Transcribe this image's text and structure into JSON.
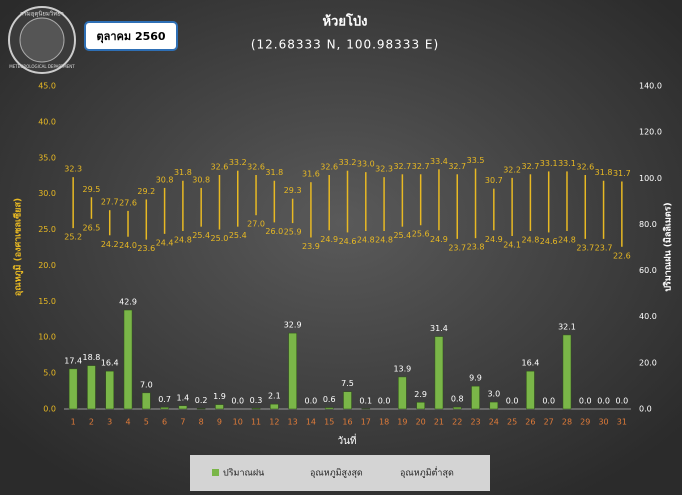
{
  "logo": {
    "top": "กรมอุตุนิยมวิทยา",
    "bottom": "METEOROLOGICAL DEPARTMENT"
  },
  "date_box": "ตุลาคม 2560",
  "chart_data": {
    "type": "bar",
    "title": "ห้วยโป่ง",
    "subtitle": "(12.68333 N, 100.98333 E)",
    "y_label": "อุณหภูมิ (องศาเซลเซียส)",
    "y2_label": "ปริมาณฝน (มิลลิเมตร)",
    "x_label": "วันที่",
    "categories": [
      "1",
      "2",
      "3",
      "4",
      "5",
      "6",
      "7",
      "8",
      "9",
      "10",
      "11",
      "12",
      "13",
      "14",
      "15",
      "16",
      "17",
      "18",
      "19",
      "20",
      "21",
      "22",
      "23",
      "24",
      "25",
      "26",
      "27",
      "28",
      "29",
      "30",
      "31"
    ],
    "ylim": [
      0,
      45
    ],
    "yticks": [
      {
        "value": 0,
        "label": "0.0"
      },
      {
        "value": 5,
        "label": "5.0"
      },
      {
        "value": 10,
        "label": "10.0"
      },
      {
        "value": 15,
        "label": "15.0"
      },
      {
        "value": 20,
        "label": "20.0"
      },
      {
        "value": 25,
        "label": "25.0"
      },
      {
        "value": 30,
        "label": "30.0"
      },
      {
        "value": 35,
        "label": "35.0"
      },
      {
        "value": 40,
        "label": "40.0"
      },
      {
        "value": 45,
        "label": "45.0"
      }
    ],
    "y2lim": [
      0,
      140
    ],
    "y2ticks": [
      {
        "value": 0,
        "label": "0.0"
      },
      {
        "value": 20,
        "label": "20.0"
      },
      {
        "value": 40,
        "label": "40.0"
      },
      {
        "value": 60,
        "label": "60.0"
      },
      {
        "value": 80,
        "label": "80.0"
      },
      {
        "value": 100,
        "label": "100.0"
      },
      {
        "value": 120,
        "label": "120.0"
      },
      {
        "value": 140,
        "label": "140.0"
      }
    ],
    "series": [
      {
        "name": "ปริมาณฝน",
        "color": "#7ab648",
        "axis": "y2",
        "values": [
          17.4,
          18.8,
          16.4,
          42.9,
          7.0,
          0.7,
          1.4,
          0.2,
          1.9,
          0.0,
          0.3,
          2.1,
          32.9,
          0.0,
          0.6,
          7.5,
          0.1,
          0.0,
          13.9,
          2.9,
          31.4,
          0.8,
          9.9,
          3.0,
          0.0,
          16.4,
          0.0,
          32.1,
          0.0,
          0.0,
          0.0
        ],
        "value_labels": [
          "17.4",
          "18.8",
          "16.4",
          "42.9",
          "7.0",
          "0.7",
          "1.4",
          "0.2",
          "1.9",
          "0.0",
          "0.3",
          "2.1",
          "32.9",
          "0.0",
          "0.6",
          "7.5",
          "0.1",
          "0.0",
          "13.9",
          "2.9",
          "31.4",
          "0.8",
          "9.9",
          "3.0",
          "0.0",
          "16.4",
          "0.0",
          "32.1",
          "0.0",
          "0.0",
          "0.0"
        ]
      },
      {
        "name": "อุณหภูมิสูงสุด",
        "color": "#e8b923",
        "values": [
          32.3,
          29.5,
          27.7,
          27.6,
          29.2,
          30.8,
          31.8,
          30.8,
          32.6,
          33.2,
          32.6,
          31.8,
          29.3,
          31.6,
          32.6,
          33.2,
          33.0,
          32.3,
          32.7,
          32.7,
          33.4,
          32.7,
          33.5,
          30.7,
          32.2,
          32.7,
          33.1,
          33.1,
          32.6,
          31.8,
          31.7
        ],
        "value_labels": [
          "32.3",
          "29.5",
          "27.7",
          "27.6",
          "29.2",
          "30.8",
          "31.8",
          "30.8",
          "32.6",
          "33.2",
          "32.6",
          "31.8",
          "29.3",
          "31.6",
          "32.6",
          "33.2",
          "33.0",
          "32.3",
          "32.7",
          "32.7",
          "33.4",
          "32.7",
          "33.5",
          "30.7",
          "32.2",
          "32.7",
          "33.1",
          "33.1",
          "32.6",
          "31.8",
          "31.7"
        ]
      },
      {
        "name": "อุณหภูมิต่ำสุด",
        "color": "#e8b923",
        "values": [
          25.2,
          26.5,
          24.2,
          24.0,
          23.6,
          24.4,
          24.8,
          25.4,
          25.0,
          25.4,
          27.0,
          26.0,
          25.9,
          23.9,
          24.9,
          24.6,
          24.8,
          24.8,
          25.4,
          25.6,
          24.9,
          23.7,
          23.8,
          24.9,
          24.1,
          24.8,
          24.6,
          24.8,
          23.7,
          23.7,
          22.6
        ],
        "value_labels": [
          "25.2",
          "26.5",
          "24.2",
          "24.0",
          "23.6",
          "24.4",
          "24.8",
          "25.4",
          "25.0",
          "25.4",
          "27.0",
          "26.0",
          "25.9",
          "23.9",
          "24.9",
          "24.6",
          "24.8",
          "24.8",
          "25.4",
          "25.6",
          "24.9",
          "23.7",
          "23.8",
          "24.9",
          "24.1",
          "24.8",
          "24.6",
          "24.8",
          "23.7",
          "23.7",
          "22.6"
        ]
      }
    ]
  }
}
